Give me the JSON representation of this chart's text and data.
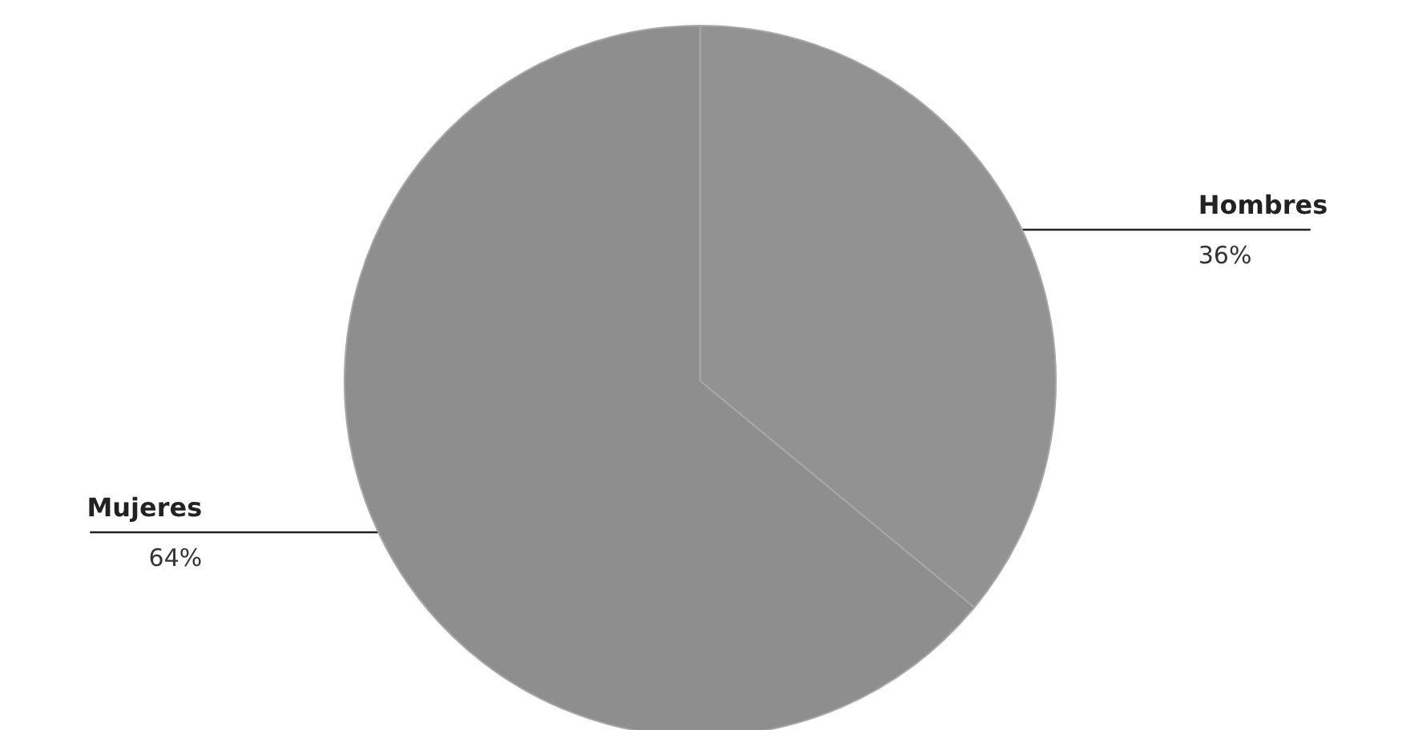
{
  "chart_data": {
    "type": "pie",
    "categories": [
      "Hombres",
      "Mujeres"
    ],
    "values": [
      36,
      64
    ],
    "value_labels": [
      "36%",
      "64%"
    ],
    "colors": [
      "#929292",
      "#8e8e8e"
    ]
  }
}
